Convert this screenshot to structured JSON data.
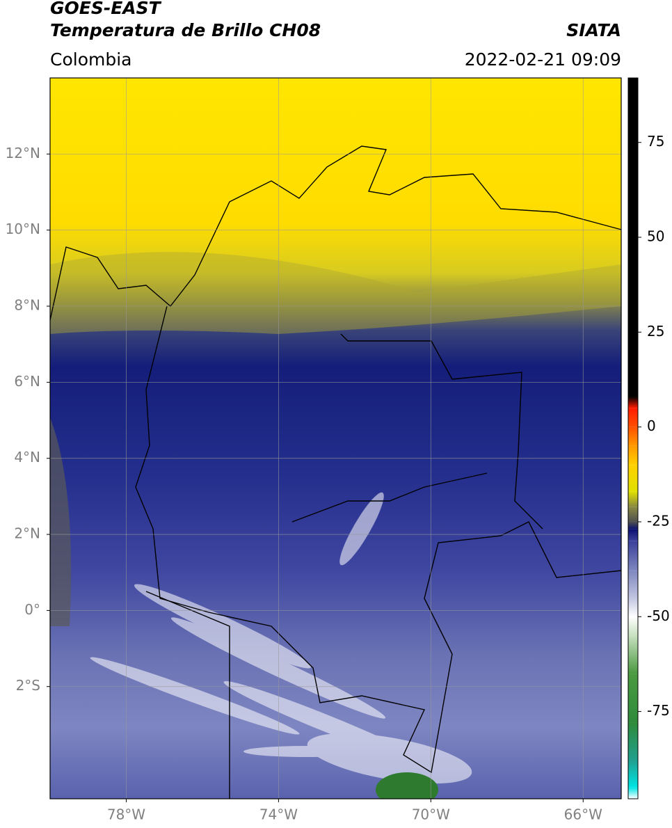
{
  "header": {
    "title": "GOES-EAST",
    "subtitle": "Temperatura de Brillo CH08",
    "source": "SIATA",
    "region": "Colombia",
    "datetime": "2022-02-21 09:09"
  },
  "map": {
    "xlim": [
      -80,
      -65
    ],
    "ylim": [
      -4.95,
      14
    ],
    "grid": true,
    "xticks": [
      {
        "value": -78,
        "label": "78°W"
      },
      {
        "value": -74,
        "label": "74°W"
      },
      {
        "value": -70,
        "label": "70°W"
      },
      {
        "value": -66,
        "label": "66°W"
      }
    ],
    "yticks": [
      {
        "value": 12,
        "label": "12°N"
      },
      {
        "value": 10,
        "label": "10°N"
      },
      {
        "value": 8,
        "label": "8°N"
      },
      {
        "value": 6,
        "label": "6°N"
      },
      {
        "value": 4,
        "label": "4°N"
      },
      {
        "value": 2,
        "label": "2°N"
      },
      {
        "value": 0,
        "label": "0°"
      },
      {
        "value": -2,
        "label": "2°S"
      }
    ]
  },
  "colorbar": {
    "clim": [
      -98,
      92
    ],
    "ticks": [
      75,
      50,
      25,
      0,
      -25,
      -50,
      -75
    ],
    "colormap": [
      {
        "value": -98,
        "color": "#ffffff"
      },
      {
        "value": -95,
        "color": "#00e5e5"
      },
      {
        "value": -88,
        "color": "#20a090"
      },
      {
        "value": -78,
        "color": "#2e8b3a"
      },
      {
        "value": -65,
        "color": "#4a9a40"
      },
      {
        "value": -55,
        "color": "#c8e0c0"
      },
      {
        "value": -50,
        "color": "#ffffff"
      },
      {
        "value": -45,
        "color": "#c0c4e0"
      },
      {
        "value": -38,
        "color": "#8088c0"
      },
      {
        "value": -30,
        "color": "#3a3f9a"
      },
      {
        "value": -27,
        "color": "#0a1070"
      },
      {
        "value": -25,
        "color": "#505050"
      },
      {
        "value": -21,
        "color": "#8a8a40"
      },
      {
        "value": -17,
        "color": "#e0e000"
      },
      {
        "value": -10,
        "color": "#ffd000"
      },
      {
        "value": -5,
        "color": "#ff9a00"
      },
      {
        "value": 0,
        "color": "#ff5000"
      },
      {
        "value": 5,
        "color": "#ff1a00"
      },
      {
        "value": 8,
        "color": "#000000"
      }
    ]
  }
}
